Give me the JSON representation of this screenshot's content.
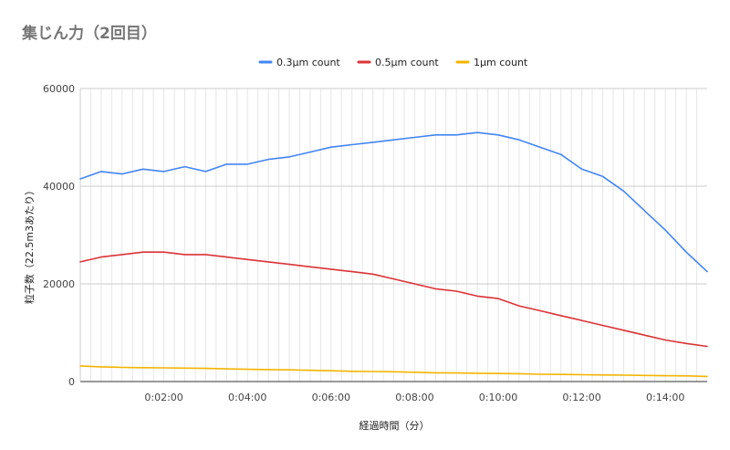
{
  "chart_data": {
    "type": "line",
    "title": "集じん力（2回目）",
    "xlabel": "経過時間（分）",
    "ylabel": "粒子数（22.5m3あたり）",
    "x_unit": "minutes",
    "xlim": [
      0,
      15
    ],
    "ylim": [
      0,
      60000
    ],
    "y_ticks": [
      0,
      20000,
      40000,
      60000
    ],
    "y_tick_labels": [
      "0",
      "20000",
      "40000",
      "60000"
    ],
    "x_ticks": [
      2,
      4,
      6,
      8,
      10,
      12,
      14
    ],
    "x_tick_labels": [
      "0:02:00",
      "0:04:00",
      "0:06:00",
      "0:08:00",
      "0:10:00",
      "0:12:00",
      "0:14:00"
    ],
    "grid": true,
    "legend_position": "top-center",
    "x": [
      0,
      0.5,
      1,
      1.5,
      2,
      2.5,
      3,
      3.5,
      4,
      4.5,
      5,
      5.5,
      6,
      6.5,
      7,
      7.5,
      8,
      8.5,
      9,
      9.5,
      10,
      10.5,
      11,
      11.5,
      12,
      12.5,
      13,
      13.5,
      14,
      14.5,
      15
    ],
    "series": [
      {
        "name": "0.3μm count",
        "color": "#4285f4",
        "values": [
          41500,
          43000,
          42500,
          43500,
          43000,
          44000,
          43000,
          44500,
          44500,
          45500,
          46000,
          47000,
          48000,
          48500,
          49000,
          49500,
          50000,
          50500,
          50500,
          51000,
          50500,
          49500,
          48000,
          46500,
          43500,
          42000,
          39000,
          35000,
          31000,
          26500,
          22500
        ]
      },
      {
        "name": "0.5μm count",
        "color": "#db3236",
        "values": [
          24500,
          25500,
          26000,
          26500,
          26500,
          26000,
          26000,
          25500,
          25000,
          24500,
          24000,
          23500,
          23000,
          22500,
          22000,
          21000,
          20000,
          19000,
          18500,
          17500,
          17000,
          15500,
          14500,
          13500,
          12500,
          11500,
          10500,
          9500,
          8500,
          7800,
          7200
        ]
      },
      {
        "name": "1μm count",
        "color": "#f4b400",
        "values": [
          3200,
          3000,
          2900,
          2850,
          2800,
          2750,
          2700,
          2600,
          2500,
          2450,
          2400,
          2300,
          2200,
          2100,
          2050,
          2000,
          1900,
          1800,
          1750,
          1700,
          1650,
          1600,
          1500,
          1450,
          1400,
          1350,
          1300,
          1250,
          1200,
          1150,
          1050
        ]
      }
    ]
  }
}
